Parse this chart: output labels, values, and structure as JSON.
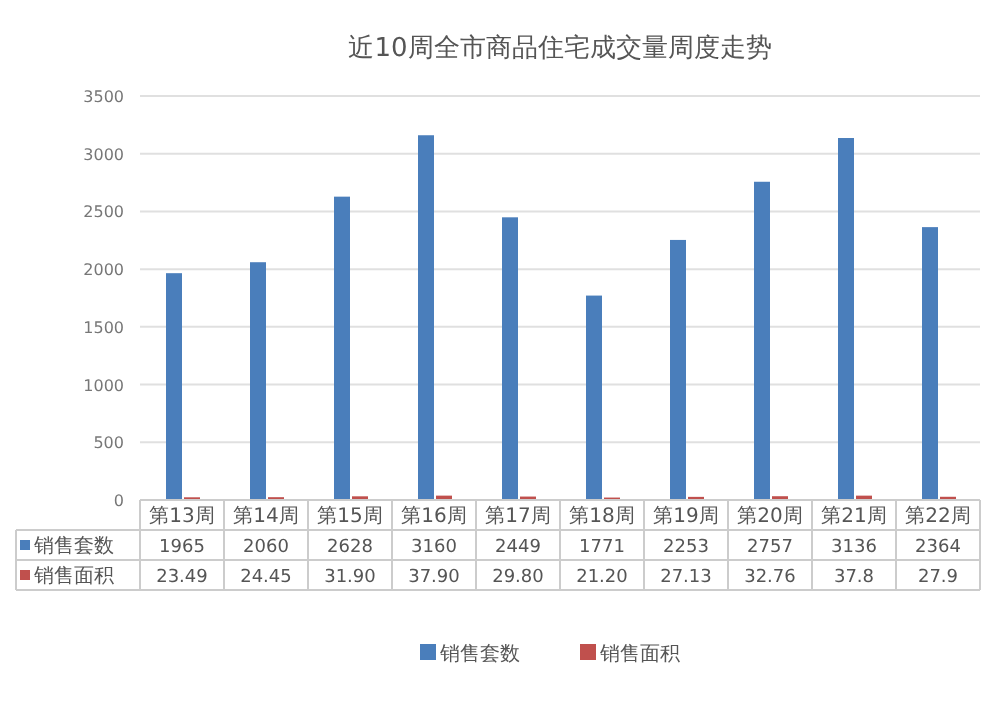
{
  "chart_data": {
    "type": "bar",
    "title": "近10周全市商品住宅成交量周度走势",
    "categories": [
      "第13周",
      "第14周",
      "第15周",
      "第16周",
      "第17周",
      "第18周",
      "第19周",
      "第20周",
      "第21周",
      "第22周"
    ],
    "series": [
      {
        "name": "销售套数",
        "color": "#4a7ebb",
        "values": [
          1965,
          2060,
          2628,
          3160,
          2449,
          1771,
          2253,
          2757,
          3136,
          2364
        ],
        "value_labels": [
          "1965",
          "2060",
          "2628",
          "3160",
          "2449",
          "1771",
          "2253",
          "2757",
          "3136",
          "2364"
        ]
      },
      {
        "name": "销售面积",
        "color": "#c0504d",
        "values": [
          23.49,
          24.45,
          31.9,
          37.9,
          29.8,
          21.2,
          27.13,
          32.76,
          37.8,
          27.9
        ],
        "value_labels": [
          "23.49",
          "24.45",
          "31.90",
          "37.90",
          "29.80",
          "21.20",
          "27.13",
          "32.76",
          "37.8",
          "27.9"
        ]
      }
    ],
    "ylim": [
      0,
      3500
    ],
    "yticks": [
      0,
      500,
      1000,
      1500,
      2000,
      2500,
      3000,
      3500
    ],
    "grid": "y",
    "legend": "bottom"
  }
}
